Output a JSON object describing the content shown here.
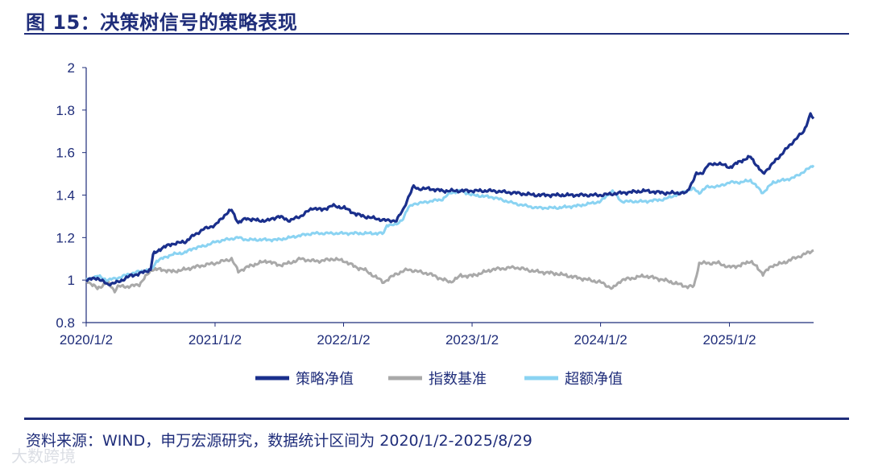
{
  "header": {
    "title": "图 15：决策树信号的策略表现"
  },
  "footer": {
    "source": "资料来源：WIND，申万宏源研究，数据统计区间为 2020/1/2-2025/8/29",
    "watermark": "大数跨境"
  },
  "colors": {
    "strategy": "#1a2f8c",
    "index": "#a9a9a9",
    "excess": "#8ad3f2",
    "axis": "#1f2d7a"
  },
  "chart_data": {
    "type": "line",
    "title": "",
    "xlabel": "",
    "ylabel": "",
    "ylim": [
      0.8,
      2.0
    ],
    "yticks": [
      "0.8",
      "1",
      "1.2",
      "1.4",
      "1.6",
      "1.8",
      "2"
    ],
    "xticks": [
      "2020/1/2",
      "2021/1/2",
      "2022/1/2",
      "2023/1/2",
      "2024/1/2",
      "2025/1/2"
    ],
    "xrange": [
      "2020/1/2",
      "2025/8/29"
    ],
    "grid": false,
    "legend_position": "bottom",
    "series": [
      {
        "name": "策略净值",
        "points": [
          [
            "2020/1/2",
            1.0
          ],
          [
            "2020/2/3",
            1.01
          ],
          [
            "2020/3/2",
            0.98
          ],
          [
            "2020/4/1",
            0.99
          ],
          [
            "2020/5/6",
            1.02
          ],
          [
            "2020/6/1",
            1.03
          ],
          [
            "2020/7/3",
            1.05
          ],
          [
            "2020/7/10",
            1.12
          ],
          [
            "2020/8/3",
            1.15
          ],
          [
            "2020/9/1",
            1.17
          ],
          [
            "2020/10/9",
            1.18
          ],
          [
            "2020/11/2",
            1.21
          ],
          [
            "2020/12/1",
            1.24
          ],
          [
            "2021/1/4",
            1.26
          ],
          [
            "2021/2/1",
            1.31
          ],
          [
            "2021/2/18",
            1.33
          ],
          [
            "2021/3/9",
            1.27
          ],
          [
            "2021/4/1",
            1.29
          ],
          [
            "2021/5/6",
            1.28
          ],
          [
            "2021/6/1",
            1.28
          ],
          [
            "2021/7/1",
            1.3
          ],
          [
            "2021/8/2",
            1.28
          ],
          [
            "2021/9/1",
            1.3
          ],
          [
            "2021/10/8",
            1.34
          ],
          [
            "2021/11/1",
            1.33
          ],
          [
            "2021/12/1",
            1.35
          ],
          [
            "2022/1/4",
            1.34
          ],
          [
            "2022/2/7",
            1.31
          ],
          [
            "2022/3/1",
            1.3
          ],
          [
            "2022/4/1",
            1.29
          ],
          [
            "2022/5/5",
            1.28
          ],
          [
            "2022/6/1",
            1.28
          ],
          [
            "2022/6/20",
            1.33
          ],
          [
            "2022/7/5",
            1.39
          ],
          [
            "2022/7/20",
            1.44
          ],
          [
            "2022/8/1",
            1.43
          ],
          [
            "2022/9/1",
            1.43
          ],
          [
            "2022/10/10",
            1.42
          ],
          [
            "2022/11/1",
            1.42
          ],
          [
            "2022/12/1",
            1.42
          ],
          [
            "2023/1/3",
            1.42
          ],
          [
            "2023/3/1",
            1.42
          ],
          [
            "2023/5/4",
            1.41
          ],
          [
            "2023/7/3",
            1.4
          ],
          [
            "2023/9/1",
            1.4
          ],
          [
            "2023/11/1",
            1.4
          ],
          [
            "2024/1/2",
            1.4
          ],
          [
            "2024/3/1",
            1.41
          ],
          [
            "2024/5/6",
            1.42
          ],
          [
            "2024/7/1",
            1.41
          ],
          [
            "2024/9/2",
            1.41
          ],
          [
            "2024/9/30",
            1.5
          ],
          [
            "2024/10/15",
            1.5
          ],
          [
            "2024/11/1",
            1.54
          ],
          [
            "2024/12/2",
            1.55
          ],
          [
            "2025/1/2",
            1.53
          ],
          [
            "2025/2/3",
            1.56
          ],
          [
            "2025/3/3",
            1.58
          ],
          [
            "2025/4/7",
            1.5
          ],
          [
            "2025/5/6",
            1.55
          ],
          [
            "2025/6/3",
            1.6
          ],
          [
            "2025/7/1",
            1.65
          ],
          [
            "2025/8/1",
            1.7
          ],
          [
            "2025/8/20",
            1.78
          ],
          [
            "2025/8/29",
            1.76
          ]
        ]
      },
      {
        "name": "指数基准",
        "points": [
          [
            "2020/1/2",
            1.0
          ],
          [
            "2020/2/3",
            0.96
          ],
          [
            "2020/3/2",
            0.99
          ],
          [
            "2020/3/23",
            0.95
          ],
          [
            "2020/4/1",
            0.97
          ],
          [
            "2020/5/6",
            0.97
          ],
          [
            "2020/6/1",
            0.98
          ],
          [
            "2020/7/6",
            1.05
          ],
          [
            "2020/8/3",
            1.05
          ],
          [
            "2020/9/1",
            1.04
          ],
          [
            "2020/10/9",
            1.05
          ],
          [
            "2020/11/2",
            1.06
          ],
          [
            "2020/12/1",
            1.07
          ],
          [
            "2021/1/4",
            1.08
          ],
          [
            "2021/2/18",
            1.1
          ],
          [
            "2021/3/9",
            1.04
          ],
          [
            "2021/4/1",
            1.06
          ],
          [
            "2021/5/6",
            1.08
          ],
          [
            "2021/6/1",
            1.09
          ],
          [
            "2021/7/1",
            1.07
          ],
          [
            "2021/8/2",
            1.08
          ],
          [
            "2021/9/1",
            1.1
          ],
          [
            "2021/10/8",
            1.09
          ],
          [
            "2021/11/1",
            1.09
          ],
          [
            "2021/12/1",
            1.1
          ],
          [
            "2022/1/4",
            1.09
          ],
          [
            "2022/2/7",
            1.06
          ],
          [
            "2022/3/1",
            1.05
          ],
          [
            "2022/4/26",
            0.99
          ],
          [
            "2022/5/5",
            1.0
          ],
          [
            "2022/6/1",
            1.03
          ],
          [
            "2022/7/5",
            1.05
          ],
          [
            "2022/8/1",
            1.04
          ],
          [
            "2022/9/1",
            1.03
          ],
          [
            "2022/10/31",
            0.99
          ],
          [
            "2022/12/1",
            1.02
          ],
          [
            "2023/1/3",
            1.02
          ],
          [
            "2023/3/1",
            1.05
          ],
          [
            "2023/5/4",
            1.06
          ],
          [
            "2023/7/3",
            1.04
          ],
          [
            "2023/9/1",
            1.03
          ],
          [
            "2023/11/1",
            1.01
          ],
          [
            "2024/1/2",
            0.99
          ],
          [
            "2024/2/5",
            0.96
          ],
          [
            "2024/3/1",
            1.0
          ],
          [
            "2024/5/6",
            1.02
          ],
          [
            "2024/7/1",
            1.0
          ],
          [
            "2024/9/2",
            0.97
          ],
          [
            "2024/9/23",
            0.97
          ],
          [
            "2024/10/8",
            1.08
          ],
          [
            "2024/11/1",
            1.08
          ],
          [
            "2024/12/2",
            1.08
          ],
          [
            "2025/1/2",
            1.06
          ],
          [
            "2025/2/3",
            1.07
          ],
          [
            "2025/3/3",
            1.09
          ],
          [
            "2025/4/7",
            1.03
          ],
          [
            "2025/5/6",
            1.07
          ],
          [
            "2025/6/3",
            1.08
          ],
          [
            "2025/7/1",
            1.1
          ],
          [
            "2025/8/1",
            1.12
          ],
          [
            "2025/8/29",
            1.14
          ]
        ]
      },
      {
        "name": "超额净值",
        "points": [
          [
            "2020/1/2",
            1.0
          ],
          [
            "2020/2/3",
            1.02
          ],
          [
            "2020/3/2",
            1.0
          ],
          [
            "2020/4/1",
            1.01
          ],
          [
            "2020/5/6",
            1.03
          ],
          [
            "2020/6/1",
            1.04
          ],
          [
            "2020/7/6",
            1.05
          ],
          [
            "2020/7/20",
            1.09
          ],
          [
            "2020/8/3",
            1.1
          ],
          [
            "2020/9/1",
            1.12
          ],
          [
            "2020/10/9",
            1.13
          ],
          [
            "2020/11/2",
            1.15
          ],
          [
            "2020/12/1",
            1.16
          ],
          [
            "2021/1/4",
            1.18
          ],
          [
            "2021/2/1",
            1.19
          ],
          [
            "2021/3/9",
            1.2
          ],
          [
            "2021/4/1",
            1.19
          ],
          [
            "2021/5/6",
            1.19
          ],
          [
            "2021/6/1",
            1.19
          ],
          [
            "2021/7/1",
            1.19
          ],
          [
            "2021/8/2",
            1.2
          ],
          [
            "2021/9/1",
            1.21
          ],
          [
            "2021/10/8",
            1.22
          ],
          [
            "2021/11/1",
            1.22
          ],
          [
            "2021/12/1",
            1.22
          ],
          [
            "2022/1/4",
            1.22
          ],
          [
            "2022/2/7",
            1.22
          ],
          [
            "2022/3/1",
            1.22
          ],
          [
            "2022/4/26",
            1.22
          ],
          [
            "2022/5/5",
            1.26
          ],
          [
            "2022/6/1",
            1.26
          ],
          [
            "2022/6/20",
            1.29
          ],
          [
            "2022/7/5",
            1.34
          ],
          [
            "2022/7/20",
            1.36
          ],
          [
            "2022/8/1",
            1.36
          ],
          [
            "2022/9/1",
            1.37
          ],
          [
            "2022/10/10",
            1.38
          ],
          [
            "2022/11/1",
            1.41
          ],
          [
            "2022/12/1",
            1.42
          ],
          [
            "2023/1/3",
            1.4
          ],
          [
            "2023/3/1",
            1.39
          ],
          [
            "2023/5/4",
            1.36
          ],
          [
            "2023/7/3",
            1.34
          ],
          [
            "2023/9/1",
            1.34
          ],
          [
            "2023/11/1",
            1.35
          ],
          [
            "2024/1/2",
            1.37
          ],
          [
            "2024/2/5",
            1.42
          ],
          [
            "2024/3/1",
            1.37
          ],
          [
            "2024/5/6",
            1.37
          ],
          [
            "2024/7/1",
            1.38
          ],
          [
            "2024/9/2",
            1.42
          ],
          [
            "2024/9/23",
            1.43
          ],
          [
            "2024/10/8",
            1.41
          ],
          [
            "2024/11/1",
            1.44
          ],
          [
            "2024/12/2",
            1.44
          ],
          [
            "2025/1/2",
            1.46
          ],
          [
            "2025/2/3",
            1.46
          ],
          [
            "2025/3/3",
            1.47
          ],
          [
            "2025/4/7",
            1.41
          ],
          [
            "2025/5/6",
            1.46
          ],
          [
            "2025/6/3",
            1.47
          ],
          [
            "2025/7/1",
            1.48
          ],
          [
            "2025/8/1",
            1.51
          ],
          [
            "2025/8/29",
            1.54
          ]
        ]
      }
    ]
  }
}
